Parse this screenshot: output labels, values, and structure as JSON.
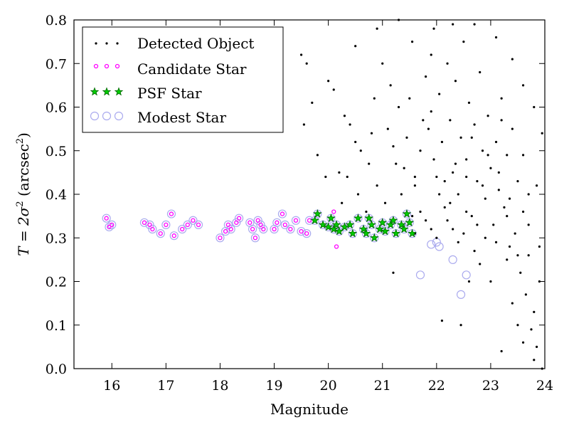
{
  "chart_data": {
    "type": "scatter",
    "xlabel": "Magnitude",
    "ylabel_parts": {
      "main": "T = 2σ",
      "exp": "2",
      "unit": " (arcsec",
      "unit_exp": "2",
      "close": ")"
    },
    "xlim": [
      15.3,
      24.0
    ],
    "ylim": [
      0.0,
      0.8
    ],
    "x_ticks": [
      "16",
      "17",
      "18",
      "19",
      "20",
      "21",
      "22",
      "23",
      "24"
    ],
    "y_ticks": [
      "0.0",
      "0.1",
      "0.2",
      "0.3",
      "0.4",
      "0.5",
      "0.6",
      "0.7",
      "0.8"
    ],
    "grid": false,
    "legend_position": "top-left",
    "colors": {
      "detected": "#000000",
      "candidate": "#ff00ff",
      "psf_fill": "#00cc00",
      "psf_edge": "#006400",
      "modest": "#aaaaee"
    },
    "series": [
      {
        "name": "Detected Object",
        "points": [
          [
            19.5,
            0.72
          ],
          [
            19.6,
            0.7
          ],
          [
            19.7,
            0.61
          ],
          [
            19.55,
            0.56
          ],
          [
            19.8,
            0.49
          ],
          [
            20.0,
            0.66
          ],
          [
            20.1,
            0.64
          ],
          [
            20.3,
            0.58
          ],
          [
            20.4,
            0.56
          ],
          [
            20.5,
            0.52
          ],
          [
            20.2,
            0.45
          ],
          [
            20.35,
            0.44
          ],
          [
            20.6,
            0.5
          ],
          [
            20.75,
            0.47
          ],
          [
            20.9,
            0.42
          ],
          [
            21.0,
            0.7
          ],
          [
            21.1,
            0.55
          ],
          [
            21.2,
            0.51
          ],
          [
            21.3,
            0.6
          ],
          [
            21.4,
            0.46
          ],
          [
            21.5,
            0.62
          ],
          [
            21.55,
            0.75
          ],
          [
            21.6,
            0.42
          ],
          [
            21.7,
            0.5
          ],
          [
            21.8,
            0.67
          ],
          [
            21.85,
            0.55
          ],
          [
            21.9,
            0.59
          ],
          [
            21.95,
            0.78
          ],
          [
            22.0,
            0.44
          ],
          [
            22.05,
            0.63
          ],
          [
            22.1,
            0.52
          ],
          [
            22.15,
            0.37
          ],
          [
            22.2,
            0.7
          ],
          [
            22.25,
            0.57
          ],
          [
            22.3,
            0.45
          ],
          [
            22.35,
            0.66
          ],
          [
            22.4,
            0.4
          ],
          [
            22.45,
            0.53
          ],
          [
            22.5,
            0.75
          ],
          [
            22.55,
            0.48
          ],
          [
            22.6,
            0.61
          ],
          [
            22.65,
            0.35
          ],
          [
            22.7,
            0.56
          ],
          [
            22.75,
            0.43
          ],
          [
            22.8,
            0.68
          ],
          [
            22.85,
            0.5
          ],
          [
            22.9,
            0.39
          ],
          [
            22.95,
            0.58
          ],
          [
            23.0,
            0.46
          ],
          [
            23.05,
            0.33
          ],
          [
            23.1,
            0.52
          ],
          [
            23.15,
            0.41
          ],
          [
            23.2,
            0.62
          ],
          [
            23.25,
            0.37
          ],
          [
            23.3,
            0.49
          ],
          [
            23.35,
            0.28
          ],
          [
            23.4,
            0.55
          ],
          [
            23.45,
            0.31
          ],
          [
            23.5,
            0.43
          ],
          [
            23.55,
            0.22
          ],
          [
            23.6,
            0.36
          ],
          [
            23.65,
            0.17
          ],
          [
            23.7,
            0.26
          ],
          [
            23.75,
            0.09
          ],
          [
            23.8,
            0.13
          ],
          [
            23.85,
            0.05
          ],
          [
            23.9,
            0.2
          ],
          [
            23.95,
            0.0
          ],
          [
            23.3,
            0.25
          ],
          [
            23.4,
            0.15
          ],
          [
            23.5,
            0.1
          ],
          [
            23.2,
            0.04
          ],
          [
            22.9,
            0.3
          ],
          [
            22.7,
            0.27
          ],
          [
            22.5,
            0.31
          ],
          [
            22.6,
            0.2
          ],
          [
            22.3,
            0.32
          ],
          [
            22.1,
            0.11
          ],
          [
            21.2,
            0.22
          ],
          [
            21.6,
            0.31
          ],
          [
            21.8,
            0.34
          ],
          [
            22.0,
            0.3
          ],
          [
            22.2,
            0.34
          ],
          [
            22.4,
            0.29
          ],
          [
            22.8,
            0.24
          ],
          [
            23.0,
            0.2
          ],
          [
            23.6,
            0.06
          ],
          [
            23.8,
            0.02
          ],
          [
            22.45,
            0.1
          ],
          [
            21.7,
            0.36
          ],
          [
            21.9,
            0.32
          ],
          [
            22.05,
            0.4
          ],
          [
            22.25,
            0.38
          ],
          [
            22.55,
            0.36
          ],
          [
            22.75,
            0.33
          ],
          [
            23.1,
            0.29
          ],
          [
            23.3,
            0.35
          ],
          [
            23.7,
            0.33
          ],
          [
            23.9,
            0.28
          ],
          [
            23.5,
            0.26
          ],
          [
            23.15,
            0.45
          ],
          [
            22.95,
            0.49
          ],
          [
            22.65,
            0.53
          ],
          [
            22.35,
            0.47
          ],
          [
            21.95,
            0.48
          ],
          [
            21.75,
            0.57
          ],
          [
            21.45,
            0.53
          ],
          [
            21.15,
            0.65
          ],
          [
            20.85,
            0.62
          ],
          [
            20.55,
            0.4
          ],
          [
            20.25,
            0.38
          ],
          [
            19.95,
            0.44
          ],
          [
            20.7,
            0.36
          ],
          [
            21.05,
            0.38
          ],
          [
            22.7,
            0.79
          ],
          [
            23.1,
            0.76
          ],
          [
            23.4,
            0.71
          ],
          [
            23.6,
            0.65
          ],
          [
            23.8,
            0.6
          ],
          [
            23.95,
            0.54
          ],
          [
            22.3,
            0.79
          ],
          [
            21.9,
            0.72
          ],
          [
            21.3,
            0.8
          ],
          [
            20.9,
            0.78
          ],
          [
            20.5,
            0.74
          ],
          [
            20.8,
            0.54
          ],
          [
            23.2,
            0.57
          ],
          [
            23.6,
            0.49
          ],
          [
            23.85,
            0.42
          ],
          [
            23.7,
            0.4
          ],
          [
            23.35,
            0.39
          ],
          [
            22.85,
            0.42
          ],
          [
            22.55,
            0.44
          ],
          [
            22.15,
            0.43
          ],
          [
            21.6,
            0.44
          ],
          [
            21.35,
            0.4
          ],
          [
            21.25,
            0.47
          ],
          [
            21.55,
            0.35
          ]
        ]
      },
      {
        "name": "Candidate Star",
        "points": [
          [
            15.9,
            0.345
          ],
          [
            15.95,
            0.325
          ],
          [
            16.0,
            0.33
          ],
          [
            16.6,
            0.335
          ],
          [
            16.7,
            0.33
          ],
          [
            16.75,
            0.32
          ],
          [
            16.9,
            0.31
          ],
          [
            17.0,
            0.33
          ],
          [
            17.1,
            0.355
          ],
          [
            17.15,
            0.305
          ],
          [
            17.3,
            0.32
          ],
          [
            17.4,
            0.33
          ],
          [
            17.5,
            0.34
          ],
          [
            17.6,
            0.33
          ],
          [
            18.0,
            0.3
          ],
          [
            18.1,
            0.315
          ],
          [
            18.15,
            0.33
          ],
          [
            18.2,
            0.32
          ],
          [
            18.3,
            0.335
          ],
          [
            18.35,
            0.345
          ],
          [
            18.55,
            0.335
          ],
          [
            18.6,
            0.32
          ],
          [
            18.65,
            0.3
          ],
          [
            18.7,
            0.34
          ],
          [
            18.75,
            0.33
          ],
          [
            18.8,
            0.32
          ],
          [
            19.0,
            0.32
          ],
          [
            19.05,
            0.335
          ],
          [
            19.15,
            0.355
          ],
          [
            19.2,
            0.33
          ],
          [
            19.3,
            0.32
          ],
          [
            19.4,
            0.34
          ],
          [
            19.5,
            0.315
          ],
          [
            19.6,
            0.31
          ],
          [
            19.65,
            0.34
          ],
          [
            20.1,
            0.36
          ],
          [
            20.15,
            0.28
          ]
        ]
      },
      {
        "name": "PSF Star",
        "points": [
          [
            19.75,
            0.34
          ],
          [
            19.8,
            0.355
          ],
          [
            19.9,
            0.33
          ],
          [
            20.0,
            0.325
          ],
          [
            20.05,
            0.345
          ],
          [
            20.1,
            0.32
          ],
          [
            20.15,
            0.33
          ],
          [
            20.2,
            0.315
          ],
          [
            20.3,
            0.325
          ],
          [
            20.4,
            0.33
          ],
          [
            20.45,
            0.31
          ],
          [
            20.55,
            0.345
          ],
          [
            20.65,
            0.32
          ],
          [
            20.7,
            0.31
          ],
          [
            20.75,
            0.345
          ],
          [
            20.8,
            0.33
          ],
          [
            20.85,
            0.3
          ],
          [
            20.95,
            0.32
          ],
          [
            21.0,
            0.335
          ],
          [
            21.05,
            0.315
          ],
          [
            21.15,
            0.33
          ],
          [
            21.2,
            0.34
          ],
          [
            21.25,
            0.31
          ],
          [
            21.35,
            0.33
          ],
          [
            21.4,
            0.32
          ],
          [
            21.45,
            0.355
          ],
          [
            21.5,
            0.335
          ],
          [
            21.55,
            0.31
          ]
        ]
      },
      {
        "name": "Modest Star",
        "points": [
          [
            15.9,
            0.345
          ],
          [
            15.95,
            0.325
          ],
          [
            16.0,
            0.33
          ],
          [
            16.6,
            0.335
          ],
          [
            16.7,
            0.33
          ],
          [
            16.75,
            0.32
          ],
          [
            16.9,
            0.31
          ],
          [
            17.0,
            0.33
          ],
          [
            17.1,
            0.355
          ],
          [
            17.15,
            0.305
          ],
          [
            17.3,
            0.32
          ],
          [
            17.4,
            0.33
          ],
          [
            17.5,
            0.34
          ],
          [
            17.6,
            0.33
          ],
          [
            18.0,
            0.3
          ],
          [
            18.1,
            0.315
          ],
          [
            18.15,
            0.33
          ],
          [
            18.2,
            0.32
          ],
          [
            18.3,
            0.335
          ],
          [
            18.35,
            0.345
          ],
          [
            18.55,
            0.335
          ],
          [
            18.6,
            0.32
          ],
          [
            18.65,
            0.3
          ],
          [
            18.7,
            0.34
          ],
          [
            18.75,
            0.33
          ],
          [
            18.8,
            0.32
          ],
          [
            19.0,
            0.32
          ],
          [
            19.05,
            0.335
          ],
          [
            19.15,
            0.355
          ],
          [
            19.2,
            0.33
          ],
          [
            19.3,
            0.32
          ],
          [
            19.4,
            0.34
          ],
          [
            19.5,
            0.315
          ],
          [
            19.6,
            0.31
          ],
          [
            19.65,
            0.34
          ],
          [
            19.75,
            0.34
          ],
          [
            19.8,
            0.355
          ],
          [
            19.9,
            0.33
          ],
          [
            20.0,
            0.325
          ],
          [
            20.05,
            0.345
          ],
          [
            20.1,
            0.32
          ],
          [
            20.15,
            0.33
          ],
          [
            20.2,
            0.315
          ],
          [
            20.3,
            0.325
          ],
          [
            20.4,
            0.33
          ],
          [
            20.45,
            0.31
          ],
          [
            20.55,
            0.345
          ],
          [
            20.65,
            0.32
          ],
          [
            20.7,
            0.31
          ],
          [
            20.75,
            0.345
          ],
          [
            20.8,
            0.33
          ],
          [
            20.85,
            0.3
          ],
          [
            20.95,
            0.32
          ],
          [
            21.0,
            0.335
          ],
          [
            21.05,
            0.315
          ],
          [
            21.15,
            0.33
          ],
          [
            21.2,
            0.34
          ],
          [
            21.25,
            0.31
          ],
          [
            21.35,
            0.33
          ],
          [
            21.4,
            0.32
          ],
          [
            21.45,
            0.355
          ],
          [
            21.5,
            0.335
          ],
          [
            21.55,
            0.31
          ],
          [
            21.7,
            0.215
          ],
          [
            21.9,
            0.285
          ],
          [
            22.0,
            0.29
          ],
          [
            22.05,
            0.28
          ],
          [
            22.3,
            0.25
          ],
          [
            22.45,
            0.17
          ],
          [
            22.55,
            0.215
          ]
        ]
      }
    ]
  }
}
